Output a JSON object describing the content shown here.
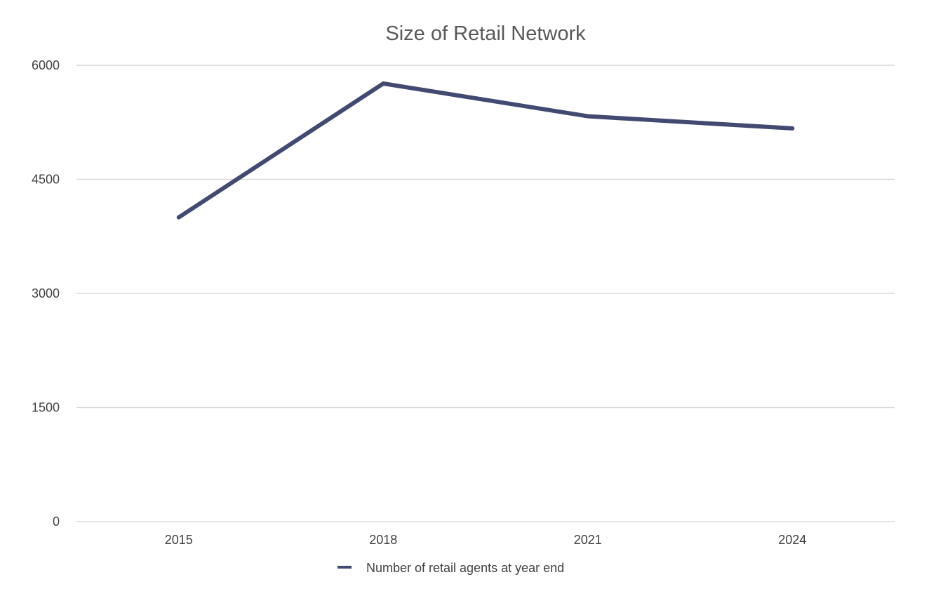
{
  "chart_data": {
    "type": "line",
    "title": "Size of Retail Network",
    "xlabel": "",
    "ylabel": "",
    "categories": [
      "2015",
      "2018",
      "2021",
      "2024"
    ],
    "series": [
      {
        "name": "Number of retail agents at year end",
        "values": [
          4000,
          5760,
          5330,
          5170
        ],
        "color": "#424a72"
      }
    ],
    "ylim": [
      0,
      6000
    ],
    "yticks": [
      0,
      1500,
      3000,
      4500,
      6000
    ],
    "ytick_labels": [
      "0",
      "1500",
      "3000",
      "4500",
      "6000"
    ],
    "grid": true,
    "legend_position": "bottom"
  }
}
